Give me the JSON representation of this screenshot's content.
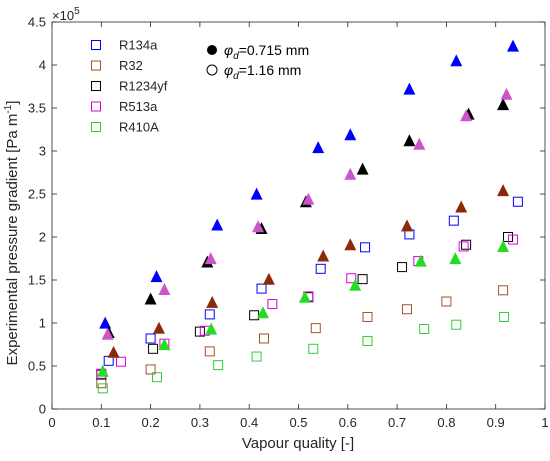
{
  "chart_data": {
    "type": "scatter",
    "title": "",
    "xlabel": "Vapour quality [-]",
    "ylabel": "Experimental pressure gradient [Pa  m",
    "ylabel_sup": "-1",
    "ylabel_end": "]",
    "y_multiplier_base": "×10",
    "y_multiplier_exp": "5",
    "xlim": [
      0,
      1
    ],
    "ylim": [
      0,
      450000
    ],
    "x_ticks": [
      0,
      0.1,
      0.2,
      0.3,
      0.4,
      0.5,
      0.6,
      0.7,
      0.8,
      0.9,
      1
    ],
    "x_tick_labels": [
      "0",
      "0.1",
      "0.2",
      "0.3",
      "0.4",
      "0.5",
      "0.6",
      "0.7",
      "0.8",
      "0.9",
      "1"
    ],
    "y_ticks": [
      0,
      50000,
      100000,
      150000,
      200000,
      250000,
      300000,
      350000,
      400000,
      450000
    ],
    "y_tick_labels": [
      "0",
      "0.5",
      "1",
      "1.5",
      "2",
      "2.5",
      "3",
      "3.5",
      "4",
      "4.5"
    ],
    "grid": false,
    "legend_position": "top-left",
    "diameter_legend": {
      "items": [
        {
          "marker": "filled",
          "symbol": "φ",
          "subscript": "d",
          "text": "=0.715 mm"
        },
        {
          "marker": "open",
          "symbol": "φ",
          "subscript": "d",
          "text": "=1.16 mm"
        }
      ]
    },
    "series": [
      {
        "name": "R134a",
        "color": "#0000ff",
        "fill_color": "#0000ff",
        "open": [
          [
            0.115,
            56000
          ],
          [
            0.2,
            82000
          ],
          [
            0.32,
            110000
          ],
          [
            0.425,
            140000
          ],
          [
            0.545,
            163000
          ],
          [
            0.635,
            188000
          ],
          [
            0.725,
            203000
          ],
          [
            0.815,
            219000
          ],
          [
            0.945,
            241000
          ]
        ],
        "filled": [
          [
            0.108,
            99000
          ],
          [
            0.212,
            153000
          ],
          [
            0.335,
            213000
          ],
          [
            0.415,
            249000
          ],
          [
            0.54,
            303000
          ],
          [
            0.605,
            318000
          ],
          [
            0.725,
            371000
          ],
          [
            0.82,
            404000
          ],
          [
            0.935,
            421000
          ]
        ]
      },
      {
        "name": "R32",
        "color": "#a0522d",
        "fill_color": "#8b2a0a",
        "open": [
          [
            0.1,
            30000
          ],
          [
            0.2,
            46000
          ],
          [
            0.32,
            67000
          ],
          [
            0.43,
            82000
          ],
          [
            0.535,
            94000
          ],
          [
            0.64,
            107000
          ],
          [
            0.72,
            116000
          ],
          [
            0.8,
            125000
          ],
          [
            0.915,
            138000
          ]
        ],
        "filled": [
          [
            0.125,
            65000
          ],
          [
            0.217,
            93000
          ],
          [
            0.325,
            123000
          ],
          [
            0.44,
            150000
          ],
          [
            0.55,
            177000
          ],
          [
            0.605,
            190000
          ],
          [
            0.72,
            212000
          ],
          [
            0.83,
            234000
          ],
          [
            0.915,
            253000
          ]
        ]
      },
      {
        "name": "R1234yf",
        "color": "#000000",
        "fill_color": "#000000",
        "open": [
          [
            0.1,
            40000
          ],
          [
            0.205,
            70000
          ],
          [
            0.3,
            90000
          ],
          [
            0.41,
            109000
          ],
          [
            0.52,
            130000
          ],
          [
            0.63,
            151000
          ],
          [
            0.71,
            165000
          ],
          [
            0.84,
            191000
          ],
          [
            0.925,
            200000
          ]
        ],
        "filled": [
          [
            0.115,
            88000
          ],
          [
            0.2,
            127000
          ],
          [
            0.315,
            170000
          ],
          [
            0.425,
            209000
          ],
          [
            0.515,
            240000
          ],
          [
            0.63,
            278000
          ],
          [
            0.725,
            311000
          ],
          [
            0.845,
            342000
          ],
          [
            0.915,
            353000
          ]
        ]
      },
      {
        "name": "R513a",
        "color": "#dd00dd",
        "fill_color": "#cc55cc",
        "open": [
          [
            0.1,
            41000
          ],
          [
            0.14,
            55000
          ],
          [
            0.228,
            76000
          ],
          [
            0.31,
            91000
          ],
          [
            0.447,
            122000
          ],
          [
            0.52,
            131000
          ],
          [
            0.607,
            152000
          ],
          [
            0.743,
            172000
          ],
          [
            0.835,
            189000
          ],
          [
            0.935,
            197000
          ]
        ],
        "filled": [
          [
            0.113,
            86000
          ],
          [
            0.228,
            138000
          ],
          [
            0.322,
            174000
          ],
          [
            0.418,
            211000
          ],
          [
            0.52,
            243000
          ],
          [
            0.605,
            272000
          ],
          [
            0.745,
            307000
          ],
          [
            0.84,
            340000
          ],
          [
            0.922,
            365000
          ]
        ]
      },
      {
        "name": "R410A",
        "color": "#33cc33",
        "fill_color": "#22dd22",
        "open": [
          [
            0.103,
            24000
          ],
          [
            0.213,
            37000
          ],
          [
            0.337,
            51000
          ],
          [
            0.415,
            61000
          ],
          [
            0.53,
            70000
          ],
          [
            0.64,
            79000
          ],
          [
            0.755,
            93000
          ],
          [
            0.82,
            98000
          ],
          [
            0.917,
            107000
          ]
        ],
        "filled": [
          [
            0.103,
            43000
          ],
          [
            0.228,
            74000
          ],
          [
            0.323,
            92000
          ],
          [
            0.428,
            111000
          ],
          [
            0.513,
            129000
          ],
          [
            0.615,
            143000
          ],
          [
            0.748,
            171000
          ],
          [
            0.818,
            174000
          ],
          [
            0.915,
            188000
          ]
        ]
      }
    ]
  }
}
